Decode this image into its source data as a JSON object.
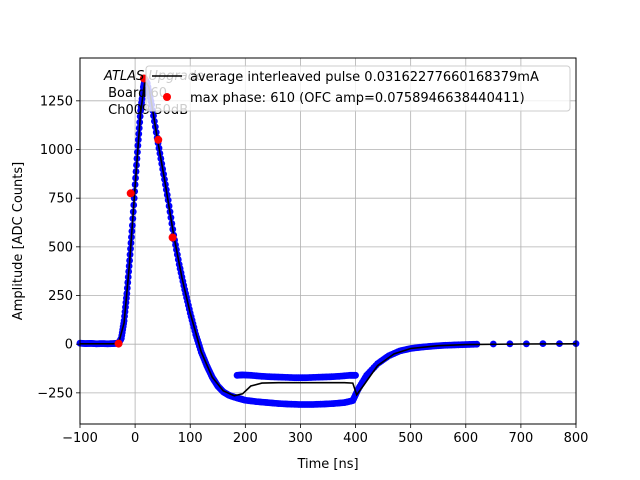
{
  "chart_data": {
    "type": "scatter",
    "xlabel": "Time [ns]",
    "ylabel": "Amplitude [ADC Counts]",
    "xlim": [
      -100,
      800
    ],
    "ylim": [
      -410,
      1470
    ],
    "xticks": [
      -100,
      0,
      100,
      200,
      300,
      400,
      500,
      600,
      700,
      800
    ],
    "yticks": [
      -250,
      0,
      250,
      500,
      750,
      1000,
      1250
    ],
    "grid": true,
    "legend_placement": "top-right",
    "annotation": {
      "line1": "ATLAS Upgrade",
      "line2": " Board 60",
      "line3": " Ch009 50dB"
    },
    "series": [
      {
        "name": "",
        "kind": "scatter",
        "color": "#0000ff",
        "points": [
          [
            -100,
            5
          ],
          [
            -90,
            3
          ],
          [
            -80,
            4
          ],
          [
            -70,
            2
          ],
          [
            -60,
            3
          ],
          [
            -50,
            2
          ],
          [
            -40,
            3
          ],
          [
            -30,
            5
          ],
          [
            -25,
            30
          ],
          [
            -20,
            120
          ],
          [
            -15,
            260
          ],
          [
            -10,
            430
          ],
          [
            -5,
            610
          ],
          [
            0,
            820
          ],
          [
            5,
            1020
          ],
          [
            10,
            1200
          ],
          [
            15,
            1320
          ],
          [
            18,
            1360
          ],
          [
            22,
            1340
          ],
          [
            30,
            1230
          ],
          [
            40,
            1060
          ],
          [
            50,
            900
          ],
          [
            60,
            740
          ],
          [
            70,
            560
          ],
          [
            80,
            410
          ],
          [
            90,
            280
          ],
          [
            100,
            160
          ],
          [
            110,
            50
          ],
          [
            120,
            -40
          ],
          [
            130,
            -110
          ],
          [
            140,
            -170
          ],
          [
            150,
            -215
          ],
          [
            160,
            -245
          ],
          [
            170,
            -262
          ],
          [
            180,
            -272
          ],
          [
            190,
            -280
          ],
          [
            200,
            -288
          ],
          [
            220,
            -295
          ],
          [
            240,
            -300
          ],
          [
            260,
            -305
          ],
          [
            280,
            -308
          ],
          [
            300,
            -310
          ],
          [
            320,
            -310
          ],
          [
            340,
            -308
          ],
          [
            360,
            -305
          ],
          [
            380,
            -300
          ],
          [
            395,
            -290
          ],
          [
            405,
            -230
          ],
          [
            420,
            -160
          ],
          [
            440,
            -100
          ],
          [
            460,
            -60
          ],
          [
            480,
            -35
          ],
          [
            500,
            -22
          ],
          [
            520,
            -15
          ],
          [
            540,
            -10
          ],
          [
            560,
            -6
          ],
          [
            580,
            -4
          ],
          [
            600,
            -2
          ],
          [
            620,
            0
          ],
          [
            650,
            1
          ],
          [
            680,
            2
          ],
          [
            710,
            2
          ],
          [
            740,
            3
          ],
          [
            770,
            3
          ],
          [
            800,
            3
          ],
          [
            185,
            -160
          ],
          [
            195,
            -158
          ],
          [
            210,
            -160
          ],
          [
            230,
            -165
          ],
          [
            250,
            -168
          ],
          [
            270,
            -170
          ],
          [
            290,
            -172
          ],
          [
            310,
            -172
          ],
          [
            330,
            -170
          ],
          [
            350,
            -168
          ],
          [
            370,
            -165
          ],
          [
            390,
            -160
          ],
          [
            400,
            -160
          ]
        ]
      },
      {
        "name": "average interleaved pulse 0.03162277660168379mA",
        "kind": "line",
        "color": "#000000",
        "points": [
          [
            -100,
            2
          ],
          [
            -40,
            2
          ],
          [
            -30,
            5
          ],
          [
            -20,
            110
          ],
          [
            -10,
            420
          ],
          [
            0,
            810
          ],
          [
            10,
            1190
          ],
          [
            18,
            1355
          ],
          [
            25,
            1320
          ],
          [
            40,
            1060
          ],
          [
            55,
            820
          ],
          [
            70,
            560
          ],
          [
            85,
            340
          ],
          [
            100,
            160
          ],
          [
            120,
            -40
          ],
          [
            140,
            -170
          ],
          [
            160,
            -240
          ],
          [
            180,
            -265
          ],
          [
            195,
            -255
          ],
          [
            210,
            -215
          ],
          [
            230,
            -200
          ],
          [
            260,
            -198
          ],
          [
            300,
            -198
          ],
          [
            340,
            -198
          ],
          [
            380,
            -198
          ],
          [
            395,
            -200
          ],
          [
            402,
            -260
          ],
          [
            415,
            -210
          ],
          [
            440,
            -110
          ],
          [
            470,
            -50
          ],
          [
            500,
            -22
          ],
          [
            550,
            -8
          ],
          [
            600,
            -2
          ],
          [
            700,
            1
          ],
          [
            800,
            2
          ]
        ]
      },
      {
        "name": "max phase: 610 (OFC amp=0.0758946638440411)",
        "kind": "scatter",
        "color": "#ff0000",
        "points": [
          [
            -30,
            3
          ],
          [
            -8,
            775
          ],
          [
            16,
            1365
          ],
          [
            42,
            1050
          ],
          [
            68,
            548
          ]
        ]
      }
    ]
  }
}
